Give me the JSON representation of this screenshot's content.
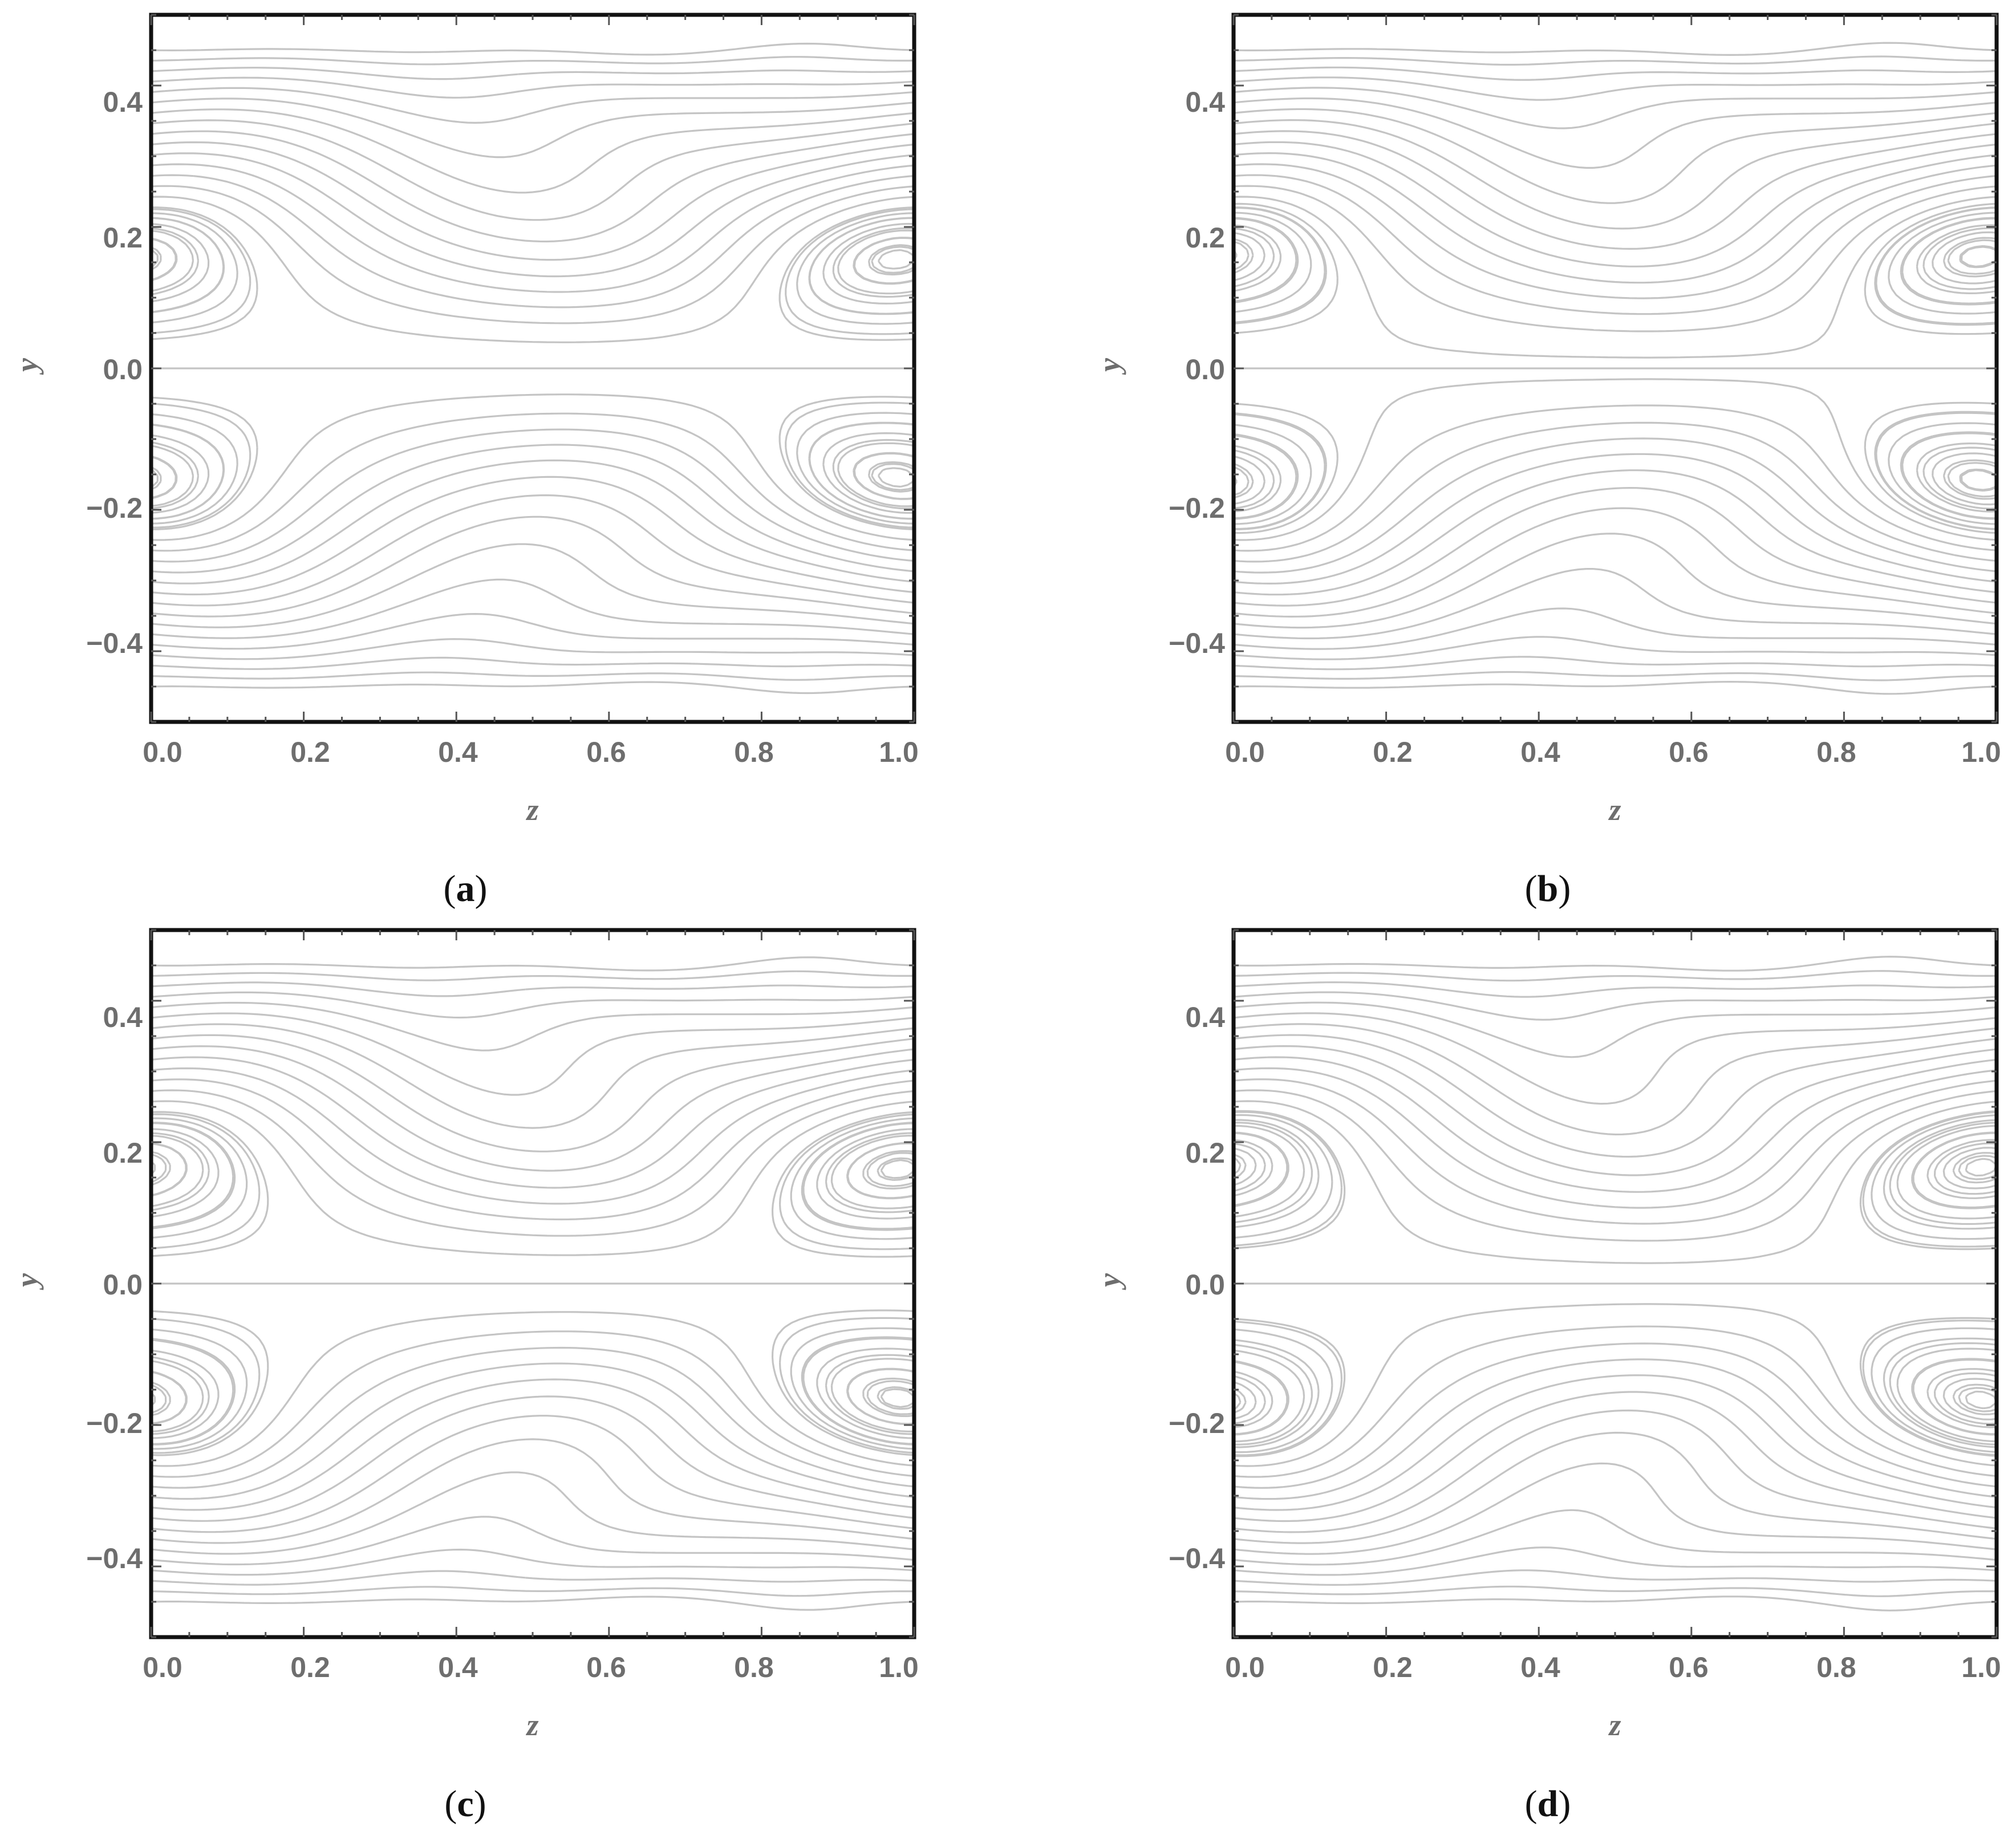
{
  "chart_data": [
    {
      "panel": "(a)",
      "type": "contour",
      "xlabel": "z",
      "ylabel": "y",
      "xlim": [
        0.0,
        1.0
      ],
      "ylim": [
        -0.5,
        0.5
      ],
      "xticks": [
        "0.0",
        "0.2",
        "0.4",
        "0.6",
        "0.8",
        "1.0"
      ],
      "yticks": [
        "0.4",
        "0.2",
        "0.0",
        "−0.2",
        "−0.4"
      ],
      "xtick_values": [
        0.0,
        0.2,
        0.4,
        0.6,
        0.8,
        1.0
      ],
      "ytick_values": [
        0.4,
        0.2,
        0.0,
        -0.2,
        -0.4
      ],
      "wall_amplitude": 0.06,
      "vortex_strength": 1.0,
      "line_color": "#c4c4c4"
    },
    {
      "panel": "(b)",
      "type": "contour",
      "xlabel": "z",
      "ylabel": "y",
      "xlim": [
        0.0,
        1.0
      ],
      "ylim": [
        -0.5,
        0.5
      ],
      "xticks": [
        "0.0",
        "0.2",
        "0.4",
        "0.6",
        "0.8",
        "1.0"
      ],
      "yticks": [
        "0.4",
        "0.2",
        "0.0",
        "−0.2",
        "−0.4"
      ],
      "xtick_values": [
        0.0,
        0.2,
        0.4,
        0.6,
        0.8,
        1.0
      ],
      "ytick_values": [
        0.4,
        0.2,
        0.0,
        -0.2,
        -0.4
      ],
      "wall_amplitude": 0.06,
      "vortex_strength": 1.08,
      "line_color": "#c4c4c4"
    },
    {
      "panel": "(c)",
      "type": "contour",
      "xlabel": "z",
      "ylabel": "y",
      "xlim": [
        0.0,
        1.0
      ],
      "ylim": [
        -0.5,
        0.5
      ],
      "xticks": [
        "0.0",
        "0.2",
        "0.4",
        "0.6",
        "0.8",
        "1.0"
      ],
      "yticks": [
        "0.4",
        "0.2",
        "0.0",
        "−0.2",
        "−0.4"
      ],
      "xtick_values": [
        0.0,
        0.2,
        0.4,
        0.6,
        0.8,
        1.0
      ],
      "ytick_values": [
        0.4,
        0.2,
        0.0,
        -0.2,
        -0.4
      ],
      "wall_amplitude": 0.06,
      "vortex_strength": 1.16,
      "line_color": "#c4c4c4"
    },
    {
      "panel": "(d)",
      "type": "contour",
      "xlabel": "z",
      "ylabel": "y",
      "xlim": [
        0.0,
        1.0
      ],
      "ylim": [
        -0.5,
        0.5
      ],
      "xticks": [
        "0.0",
        "0.2",
        "0.4",
        "0.6",
        "0.8",
        "1.0"
      ],
      "yticks": [
        "0.4",
        "0.2",
        "0.0",
        "−0.2",
        "−0.4"
      ],
      "xtick_values": [
        0.0,
        0.2,
        0.4,
        0.6,
        0.8,
        1.0
      ],
      "ytick_values": [
        0.4,
        0.2,
        0.0,
        -0.2,
        -0.4
      ],
      "wall_amplitude": 0.06,
      "vortex_strength": 1.22,
      "line_color": "#c4c4c4"
    }
  ]
}
